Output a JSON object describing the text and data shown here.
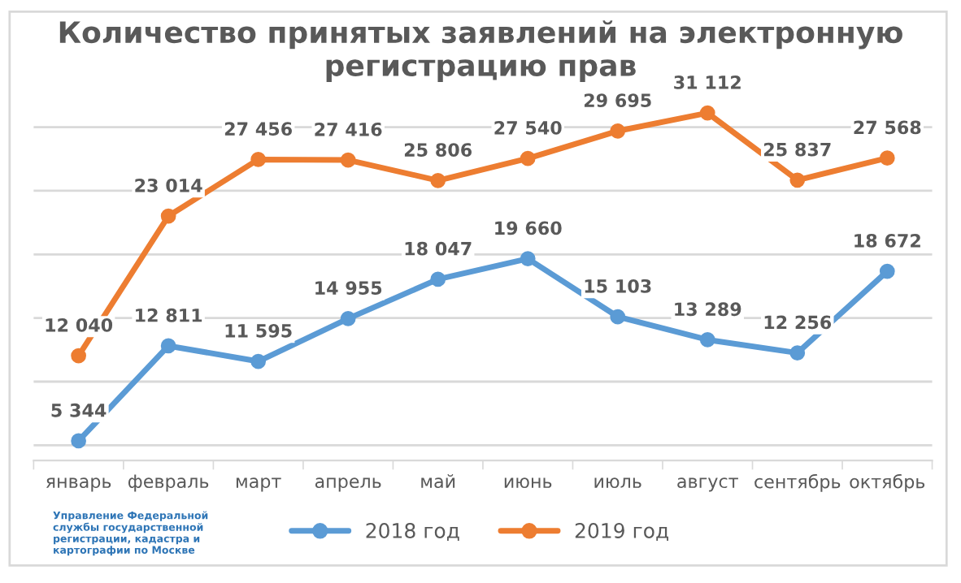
{
  "chart_data": {
    "type": "line",
    "title": "Количество принятых заявлений на электронную регистрацию прав",
    "categories": [
      "январь",
      "февраль",
      "март",
      "апрель",
      "май",
      "июнь",
      "июль",
      "август",
      "сентябрь",
      "октябрь"
    ],
    "series": [
      {
        "name": "2018 год",
        "color": "#5b9bd5",
        "values": [
          5344,
          12811,
          11595,
          14955,
          18047,
          19660,
          15103,
          13289,
          12256,
          18672
        ],
        "value_labels": [
          "5 344",
          "12 811",
          "11 595",
          "14 955",
          "18 047",
          "19 660",
          "15 103",
          "13 289",
          "12 256",
          "18 672"
        ]
      },
      {
        "name": "2019 год",
        "color": "#ed7d31",
        "values": [
          12040,
          23014,
          27456,
          27416,
          25806,
          27540,
          29695,
          31112,
          25837,
          27568
        ],
        "value_labels": [
          "12 040",
          "23 014",
          "27 456",
          "27 416",
          "25 806",
          "27 540",
          "29 695",
          "31 112",
          "25 837",
          "27 568"
        ]
      }
    ],
    "tick_labels": "x",
    "grid": "y",
    "legend": "bottom",
    "marker": "circle",
    "line_style": "solid",
    "annotations": [
      "Управление Федеральной\nслужбы государственной\nрегистрации, кадастра и\nкартографии по Москве"
    ]
  }
}
